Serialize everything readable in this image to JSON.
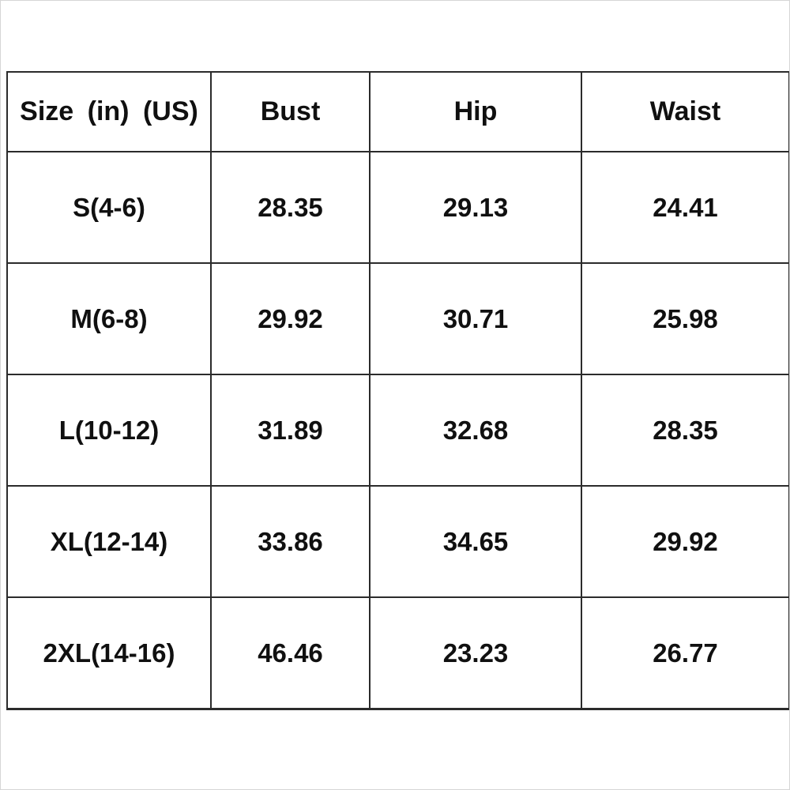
{
  "page": {
    "background_color": "#ffffff",
    "grid_border_color": "#2b2b2b",
    "text_color": "#101010"
  },
  "table": {
    "columns": [
      "Size (in) (US)",
      "Bust",
      "Hip",
      "Waist"
    ],
    "rows": [
      {
        "size": "S(4-6)",
        "bust": "28.35",
        "hip": "29.13",
        "waist": "24.41"
      },
      {
        "size": "M(6-8)",
        "bust": "29.92",
        "hip": "30.71",
        "waist": "25.98"
      },
      {
        "size": "L(10-12)",
        "bust": "31.89",
        "hip": "32.68",
        "waist": "28.35"
      },
      {
        "size": "XL(12-14)",
        "bust": "33.86",
        "hip": "34.65",
        "waist": "29.92"
      },
      {
        "size": "2XL(14-16)",
        "bust": "46.46",
        "hip": "23.23",
        "waist": "26.77"
      }
    ]
  },
  "chart_data": {
    "type": "table",
    "columns": [
      "Size (in) (US)",
      "Bust",
      "Hip",
      "Waist"
    ],
    "rows": [
      [
        "S(4-6)",
        28.35,
        29.13,
        24.41
      ],
      [
        "M(6-8)",
        29.92,
        30.71,
        25.98
      ],
      [
        "L(10-12)",
        31.89,
        32.68,
        28.35
      ],
      [
        "XL(12-14)",
        33.86,
        34.65,
        29.92
      ],
      [
        "2XL(14-16)",
        46.46,
        23.23,
        26.77
      ]
    ],
    "units": "in",
    "layout": "size chart table, grid on, centered bold text"
  }
}
